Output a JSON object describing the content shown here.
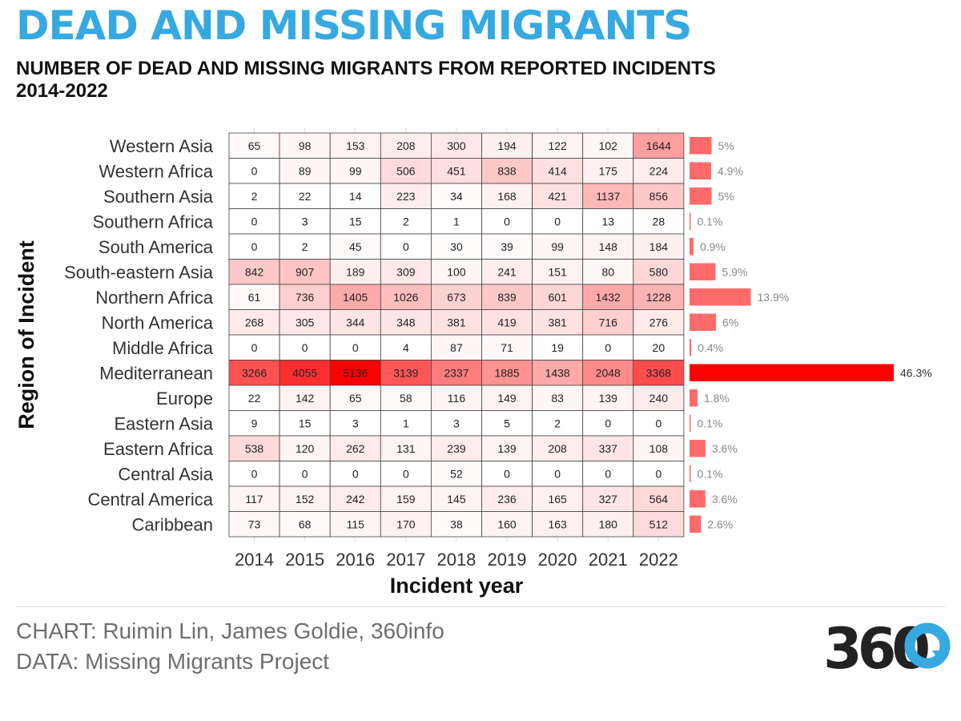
{
  "header": {
    "title": "DEAD AND MISSING MIGRANTS",
    "subtitle": "NUMBER OF DEAD AND MISSING MIGRANTS FROM REPORTED INCIDENTS 2014-2022"
  },
  "footer": {
    "credit": "CHART: Ruimin Lin, James Goldie, 360info",
    "source": "DATA: Missing Migrants Project",
    "logo_text": "360"
  },
  "colors": {
    "title": "#36a9e1",
    "heat_low": "#ffffff",
    "heat_high": "#ff0000",
    "bar": "#ff6b6b",
    "bar_max": "#ff0000",
    "logo_dark": "#222222",
    "logo_accent": "#36a9e1"
  },
  "chart_data": {
    "type": "heatmap",
    "xlabel": "Incident year",
    "ylabel": "Region of Incident",
    "x": [
      "2014",
      "2015",
      "2016",
      "2017",
      "2018",
      "2019",
      "2020",
      "2021",
      "2022"
    ],
    "y": [
      "Western Asia",
      "Western Africa",
      "Southern Asia",
      "Southern Africa",
      "South America",
      "South-eastern Asia",
      "Northern Africa",
      "North America",
      "Middle Africa",
      "Mediterranean",
      "Europe",
      "Eastern Asia",
      "Eastern Africa",
      "Central Asia",
      "Central America",
      "Caribbean"
    ],
    "values": [
      [
        65,
        98,
        153,
        208,
        300,
        194,
        122,
        102,
        1644
      ],
      [
        0,
        89,
        99,
        506,
        451,
        838,
        414,
        175,
        224
      ],
      [
        2,
        22,
        14,
        223,
        34,
        168,
        421,
        1137,
        856
      ],
      [
        0,
        3,
        15,
        2,
        1,
        0,
        0,
        13,
        28
      ],
      [
        0,
        2,
        45,
        0,
        30,
        39,
        99,
        148,
        184
      ],
      [
        842,
        907,
        189,
        309,
        100,
        241,
        151,
        80,
        580
      ],
      [
        61,
        736,
        1405,
        1026,
        673,
        839,
        601,
        1432,
        1228
      ],
      [
        268,
        305,
        344,
        348,
        381,
        419,
        381,
        716,
        276
      ],
      [
        0,
        0,
        0,
        4,
        87,
        71,
        19,
        0,
        20
      ],
      [
        3266,
        4055,
        5136,
        3139,
        2337,
        1885,
        1438,
        2048,
        3368
      ],
      [
        22,
        142,
        65,
        58,
        116,
        149,
        83,
        139,
        240
      ],
      [
        9,
        15,
        3,
        1,
        3,
        5,
        2,
        0,
        0
      ],
      [
        538,
        120,
        262,
        131,
        239,
        139,
        208,
        337,
        108
      ],
      [
        0,
        0,
        0,
        0,
        52,
        0,
        0,
        0,
        0
      ],
      [
        117,
        152,
        242,
        159,
        145,
        236,
        165,
        327,
        564
      ],
      [
        73,
        68,
        115,
        170,
        38,
        160,
        163,
        180,
        512
      ]
    ],
    "shares": [
      5,
      4.9,
      5,
      0.1,
      0.9,
      5.9,
      13.9,
      6,
      0.4,
      46.3,
      1.8,
      0.1,
      3.6,
      0.1,
      3.6,
      2.6
    ],
    "share_labels": [
      "5%",
      "4.9%",
      "5%",
      "0.1%",
      "0.9%",
      "5.9%",
      "13.9%",
      "6%",
      "0.4%",
      "46.3%",
      "1.8%",
      "0.1%",
      "3.6%",
      "0.1%",
      "3.6%",
      "2.6%"
    ],
    "legend": "none"
  }
}
